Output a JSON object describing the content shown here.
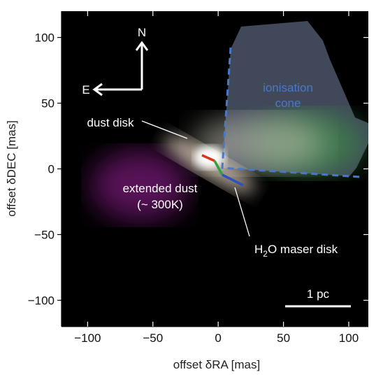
{
  "chart_data": {
    "type": "image",
    "xlabel": "offset δRA [mas]",
    "ylabel": "offset δDEC [mas]",
    "xlim": [
      -120,
      115
    ],
    "ylim": [
      -120,
      120
    ],
    "xticks": [
      {
        "value": -100,
        "label": "−100"
      },
      {
        "value": -50,
        "label": "−50"
      },
      0,
      50,
      100
    ],
    "yticks": [
      {
        "value": -100,
        "label": "−100"
      },
      {
        "value": -50,
        "label": "−50"
      },
      0,
      50,
      100
    ],
    "annotations": {
      "north": "N",
      "east": "E",
      "dust_disk": "dust disk",
      "ionisation_cone": [
        "ionisation",
        "cone"
      ],
      "extended_dust": [
        "extended dust",
        "(~ 300K)"
      ],
      "maser_disk": [
        "H",
        "2",
        "O maser disk"
      ],
      "scale_bar": "1 pc"
    }
  }
}
